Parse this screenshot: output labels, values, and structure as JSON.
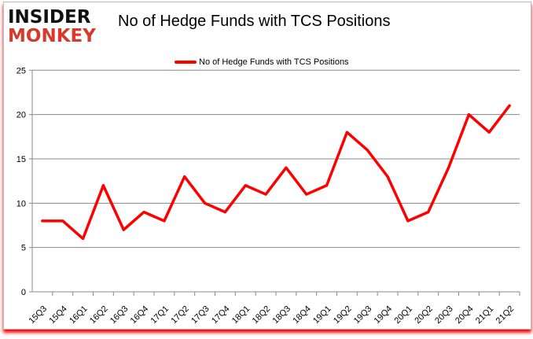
{
  "logo": {
    "line1": "INSIDER",
    "line2": "MONKEY"
  },
  "chart_data": {
    "type": "line",
    "title": "No of Hedge Funds with TCS Positions",
    "xlabel": "",
    "ylabel": "",
    "categories": [
      "15Q3",
      "15Q4",
      "16Q1",
      "16Q2",
      "16Q3",
      "16Q4",
      "17Q1",
      "17Q2",
      "17Q3",
      "17Q4",
      "18Q1",
      "18Q2",
      "18Q3",
      "18Q4",
      "19Q1",
      "19Q2",
      "19Q3",
      "19Q4",
      "20Q1",
      "20Q2",
      "20Q3",
      "20Q4",
      "21Q1",
      "21Q2"
    ],
    "series": [
      {
        "name": "No of Hedge Funds with TCS Positions",
        "color": "#ff0000",
        "values": [
          8,
          8,
          6,
          12,
          7,
          9,
          8,
          13,
          10,
          9,
          12,
          11,
          14,
          11,
          12,
          18,
          16,
          13,
          8,
          9,
          14,
          20,
          18,
          21
        ]
      }
    ],
    "ylim": [
      0,
      25
    ],
    "yticks": [
      0,
      5,
      10,
      15,
      20,
      25
    ],
    "grid": true,
    "legend": "top-center"
  }
}
